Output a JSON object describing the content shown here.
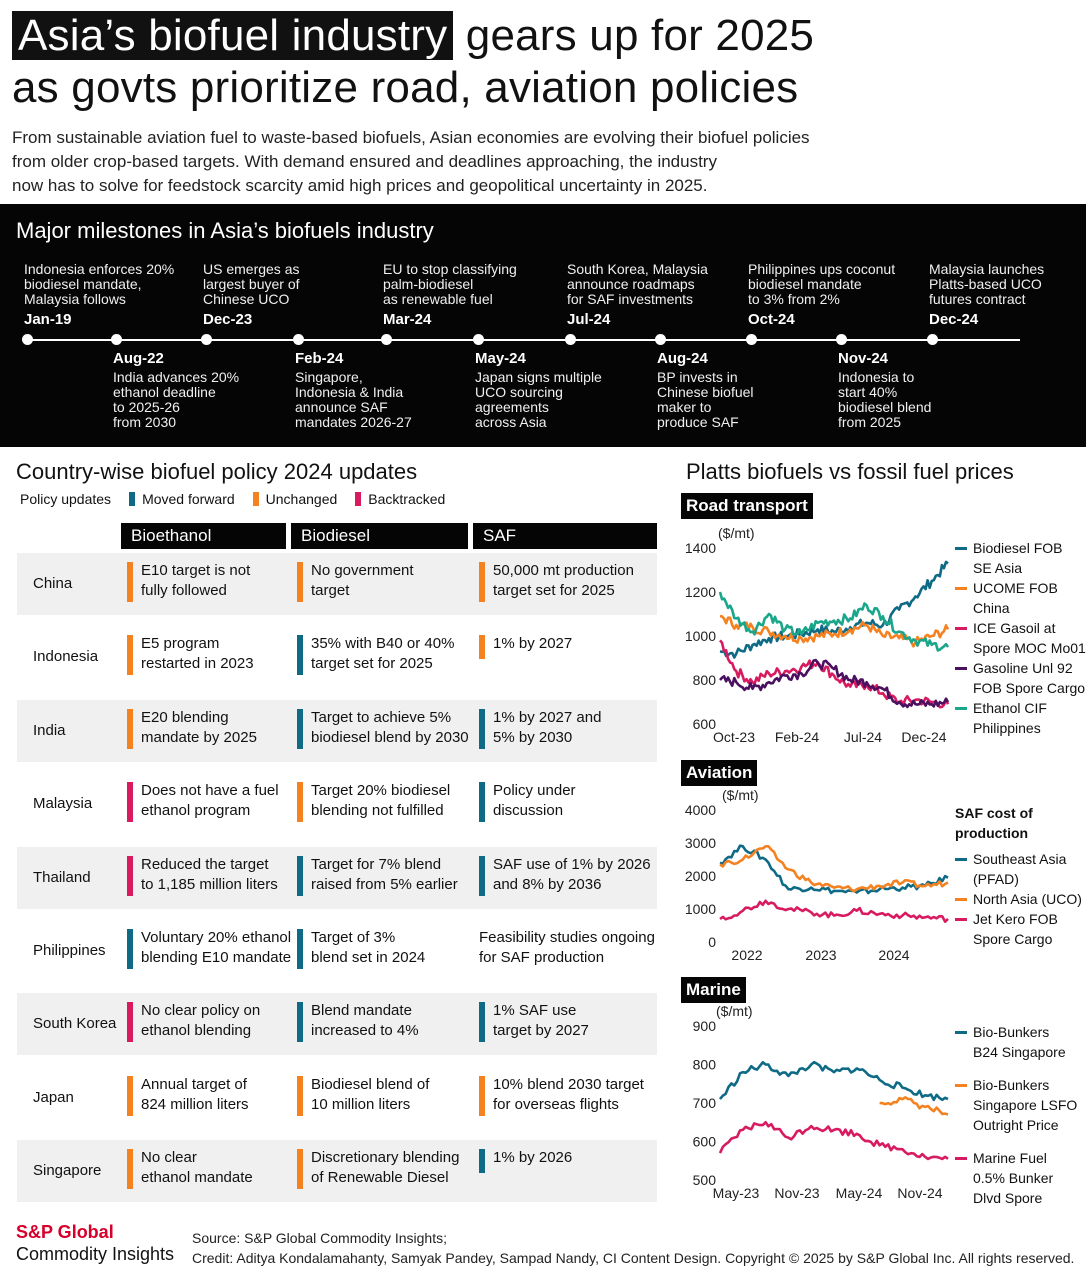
{
  "header": {
    "title_highlight": "Asia’s biofuel industry",
    "title_line1_rest": "gears up for 2025",
    "title_line2": "as govts prioritize road, aviation policies",
    "subtitle_lines": [
      "From sustainable aviation fuel to waste-based biofuels, Asian economies are evolving their biofuel policies",
      "from older crop-based targets. With demand ensured and deadlines approaching, the industry",
      "now has to solve for feedstock scarcity amid high prices and geopolitical uncertainty in 2025."
    ]
  },
  "timeline": {
    "title": "Major milestones in Asia’s biofuels industry",
    "events": [
      {
        "date": "Jan-19",
        "pos": "top",
        "lines": [
          "Indonesia enforces 20%",
          "biodiesel mandate,",
          "Malaysia follows"
        ]
      },
      {
        "date": "Aug-22",
        "pos": "bot",
        "lines": [
          "India advances 20%",
          "ethanol deadline",
          "to 2025-26",
          "from 2030"
        ]
      },
      {
        "date": "Dec-23",
        "pos": "top",
        "lines": [
          "US emerges as",
          "largest buyer of",
          "Chinese UCO"
        ]
      },
      {
        "date": "Feb-24",
        "pos": "bot",
        "lines": [
          "Singapore,",
          "Indonesia & India",
          "announce SAF",
          "mandates 2026-27"
        ]
      },
      {
        "date": "Mar-24",
        "pos": "top",
        "lines": [
          "EU to stop classifying",
          "palm-biodiesel",
          "as renewable fuel"
        ]
      },
      {
        "date": "May-24",
        "pos": "bot",
        "lines": [
          "Japan signs multiple",
          "UCO sourcing",
          "agreements",
          "across Asia"
        ]
      },
      {
        "date": "Jul-24",
        "pos": "top",
        "lines": [
          "South Korea, Malaysia",
          "announce roadmaps",
          "for SAF investments"
        ]
      },
      {
        "date": "Aug-24",
        "pos": "bot",
        "lines": [
          "BP invests in",
          "Chinese biofuel",
          "maker to",
          "produce SAF"
        ]
      },
      {
        "date": "Oct-24",
        "pos": "top",
        "lines": [
          "Philippines ups coconut",
          "biodiesel mandate",
          "to 3% from 2%"
        ]
      },
      {
        "date": "Nov-24",
        "pos": "bot",
        "lines": [
          "Indonesia to",
          "start 40%",
          "biodiesel blend",
          "from 2025"
        ]
      },
      {
        "date": "Dec-24",
        "pos": "top",
        "lines": [
          "Malaysia launches",
          "Platts-based UCO",
          "futures contract"
        ]
      }
    ]
  },
  "policy": {
    "title": "Country-wise biofuel policy 2024 updates",
    "legend_label": "Policy updates",
    "legend": [
      {
        "label": "Moved forward",
        "color": "#0f6b85"
      },
      {
        "label": "Unchanged",
        "color": "#f58220"
      },
      {
        "label": "Backtracked",
        "color": "#d81b60"
      }
    ],
    "columns": [
      "Bioethanol",
      "Biodiesel",
      "SAF"
    ],
    "rows": [
      {
        "country": "China",
        "cells": [
          {
            "status": "unchanged",
            "lines": [
              "E10 target is not",
              "fully followed"
            ]
          },
          {
            "status": "unchanged",
            "lines": [
              "No government",
              "target"
            ]
          },
          {
            "status": "unchanged",
            "lines": [
              "50,000 mt production",
              "target set for 2025"
            ]
          }
        ]
      },
      {
        "country": "Indonesia",
        "cells": [
          {
            "status": "unchanged",
            "lines": [
              "E5 program",
              "restarted in 2023"
            ]
          },
          {
            "status": "forward",
            "lines": [
              "35% with B40 or 40%",
              "target set for 2025"
            ]
          },
          {
            "status": "unchanged",
            "lines": [
              "1% by 2027"
            ]
          }
        ]
      },
      {
        "country": "India",
        "cells": [
          {
            "status": "unchanged",
            "lines": [
              "E20 blending",
              "mandate by 2025"
            ]
          },
          {
            "status": "forward",
            "lines": [
              "Target to achieve 5%",
              "biodiesel blend by 2030"
            ]
          },
          {
            "status": "forward",
            "lines": [
              "1% by 2027 and",
              "5% by 2030"
            ]
          }
        ]
      },
      {
        "country": "Malaysia",
        "cells": [
          {
            "status": "backtracked",
            "lines": [
              "Does not have a fuel",
              "ethanol program"
            ]
          },
          {
            "status": "unchanged",
            "lines": [
              "Target 20% biodiesel",
              "blending not fulfilled"
            ]
          },
          {
            "status": "forward",
            "lines": [
              "Policy under",
              "discussion"
            ]
          }
        ]
      },
      {
        "country": "Thailand",
        "cells": [
          {
            "status": "backtracked",
            "lines": [
              "Reduced the target",
              "to 1,185 million liters"
            ]
          },
          {
            "status": "forward",
            "lines": [
              "Target for 7% blend",
              "raised from 5% earlier"
            ]
          },
          {
            "status": "forward",
            "lines": [
              "SAF use of 1% by 2026",
              "and 8% by 2036"
            ]
          }
        ]
      },
      {
        "country": "Philippines",
        "cells": [
          {
            "status": "forward",
            "lines": [
              "Voluntary 20% ethanol",
              "blending E10 mandate"
            ]
          },
          {
            "status": "forward",
            "lines": [
              "Target of 3%",
              "blend set in 2024"
            ]
          },
          {
            "status": "none",
            "lines": [
              "Feasibility studies ongoing",
              "for SAF production"
            ]
          }
        ]
      },
      {
        "country": "South Korea",
        "cells": [
          {
            "status": "backtracked",
            "lines": [
              "No clear policy on",
              "ethanol blending"
            ]
          },
          {
            "status": "forward",
            "lines": [
              "Blend mandate",
              "increased to 4%"
            ]
          },
          {
            "status": "forward",
            "lines": [
              "1% SAF use",
              "target by 2027"
            ]
          }
        ]
      },
      {
        "country": "Japan",
        "cells": [
          {
            "status": "unchanged",
            "lines": [
              "Annual target of",
              "824 million liters"
            ]
          },
          {
            "status": "unchanged",
            "lines": [
              "Biodiesel blend of",
              "10 million liters"
            ]
          },
          {
            "status": "unchanged",
            "lines": [
              "10% blend 2030 target",
              "for overseas flights"
            ]
          }
        ]
      },
      {
        "country": "Singapore",
        "cells": [
          {
            "status": "unchanged",
            "lines": [
              "No clear",
              "ethanol mandate"
            ]
          },
          {
            "status": "unchanged",
            "lines": [
              "Discretionary blending",
              "of Renewable Diesel"
            ]
          },
          {
            "status": "forward",
            "lines": [
              "1% by 2026"
            ]
          }
        ]
      }
    ]
  },
  "charts_title": "Platts biofuels vs fossil fuel prices",
  "chart_data": [
    {
      "type": "line",
      "panel": "Road transport",
      "ylabel": "($/mt)",
      "ylim": [
        600,
        1400
      ],
      "yticks": [
        600,
        800,
        1000,
        1200,
        1400
      ],
      "xticks": [
        "Oct-23",
        "Feb-24",
        "Jul-24",
        "Dec-24"
      ],
      "x": [
        "Oct-23",
        "Nov-23",
        "Dec-23",
        "Jan-24",
        "Feb-24",
        "Mar-24",
        "Apr-24",
        "May-24",
        "Jun-24",
        "Jul-24",
        "Aug-24",
        "Sep-24",
        "Oct-24",
        "Nov-24",
        "Dec-24"
      ],
      "series": [
        {
          "name": "Biodiesel FOB SE Asia",
          "label_lines": [
            "Biodiesel FOB",
            "SE Asia"
          ],
          "color": "#0f6b85",
          "values": [
            930,
            920,
            960,
            990,
            1000,
            1010,
            1030,
            1020,
            1040,
            1060,
            1050,
            1120,
            1180,
            1250,
            1330
          ]
        },
        {
          "name": "UCOME FOB China",
          "label_lines": [
            "UCOME FOB",
            "China"
          ],
          "color": "#f58220",
          "values": [
            1090,
            1050,
            1040,
            1020,
            1000,
            990,
            1000,
            1010,
            1030,
            1050,
            1000,
            990,
            970,
            1000,
            1030
          ]
        },
        {
          "name": "ICE Gasoil at Spore MOC Mo01",
          "label_lines": [
            "ICE Gasoil at",
            "Spore MOC Mo01"
          ],
          "color": "#d81b60",
          "values": [
            980,
            840,
            790,
            830,
            840,
            860,
            880,
            820,
            770,
            780,
            740,
            700,
            710,
            700,
            690
          ]
        },
        {
          "name": "Gasoline Unl 92 FOB Spore Cargo",
          "label_lines": [
            "Gasoline Unl 92",
            "FOB Spore Cargo"
          ],
          "color": "#4b1060",
          "values": [
            800,
            790,
            760,
            790,
            820,
            830,
            880,
            850,
            800,
            790,
            760,
            700,
            690,
            690,
            700
          ]
        },
        {
          "name": "Ethanol CIF Philippines",
          "label_lines": [
            "Ethanol CIF",
            "Philippines"
          ],
          "color": "#1aa68a",
          "values": [
            1200,
            1080,
            1020,
            1100,
            1030,
            1010,
            1060,
            1070,
            1080,
            1140,
            1090,
            1020,
            980,
            960,
            950
          ]
        }
      ]
    },
    {
      "type": "line",
      "panel": "Aviation",
      "ylabel": "($/mt)",
      "ylim": [
        0,
        4000
      ],
      "yticks": [
        0,
        1000,
        2000,
        3000,
        4000
      ],
      "xticks": [
        "2022",
        "2023",
        "2024"
      ],
      "legend_title_lines": [
        "SAF cost of",
        "production"
      ],
      "x": [
        "Sep-21",
        "Jan-22",
        "May-22",
        "Sep-22",
        "Jan-23",
        "May-23",
        "Sep-23",
        "Jan-24",
        "May-24",
        "Sep-24",
        "Dec-24"
      ],
      "series": [
        {
          "name": "Southeast Asia (PFAD)",
          "label_lines": [
            "Southeast Asia",
            "(PFAD)"
          ],
          "color": "#0f6b85",
          "values": [
            2400,
            2900,
            2500,
            1600,
            1650,
            1550,
            1500,
            1600,
            1650,
            1700,
            1950
          ]
        },
        {
          "name": "North Asia (UCO)",
          "label_lines": [
            "North Asia (UCO)"
          ],
          "color": "#f58220",
          "values": [
            2350,
            2500,
            2900,
            2200,
            1800,
            1650,
            1600,
            1700,
            1800,
            1700,
            1800
          ]
        },
        {
          "name": "Jet Kero FOB Spore Cargo",
          "label_lines": [
            "Jet Kero FOB",
            "Spore Cargo"
          ],
          "color": "#d81b60",
          "values": [
            700,
            950,
            1250,
            1000,
            900,
            800,
            950,
            850,
            800,
            750,
            700
          ]
        }
      ]
    },
    {
      "type": "line",
      "panel": "Marine",
      "ylabel": "($/mt)",
      "ylim": [
        500,
        900
      ],
      "yticks": [
        500,
        600,
        700,
        800,
        900
      ],
      "xticks": [
        "May-23",
        "Nov-23",
        "May-24",
        "Nov-24"
      ],
      "x": [
        "May-23",
        "Jul-23",
        "Sep-23",
        "Nov-23",
        "Jan-24",
        "Mar-24",
        "May-24",
        "Jul-24",
        "Sep-24",
        "Nov-24",
        "Dec-24"
      ],
      "series": [
        {
          "name": "Bio-Bunkers B24 Singapore",
          "label_lines": [
            "Bio-Bunkers",
            "B24 Singapore"
          ],
          "color": "#0f6b85",
          "values": [
            710,
            780,
            800,
            770,
            800,
            780,
            790,
            760,
            740,
            720,
            710
          ]
        },
        {
          "name": "Bio-Bunkers Singapore LSFO Outright Price",
          "label_lines": [
            "Bio-Bunkers",
            "Singapore LSFO",
            "Outright Price"
          ],
          "color": "#f58220",
          "values": [
            null,
            null,
            null,
            null,
            null,
            null,
            null,
            700,
            710,
            690,
            670
          ]
        },
        {
          "name": "Marine Fuel 0.5% Bunker Dlvd Spore",
          "label_lines": [
            "Marine Fuel",
            "0.5% Bunker",
            "Dlvd Spore"
          ],
          "color": "#d81b60",
          "values": [
            570,
            630,
            650,
            610,
            640,
            630,
            620,
            590,
            580,
            560,
            555
          ]
        }
      ]
    }
  ],
  "footer": {
    "logo_line1": "S&P Global",
    "logo_line2": "Commodity Insights",
    "source_lines": [
      "Source: S&P Global Commodity Insights;",
      "Credit: Aditya Kondalamahanty, Samyak Pandey, Sampad Nandy, CI Content Design. Copyright © 2025 by S&P Global Inc.  All rights reserved."
    ]
  }
}
